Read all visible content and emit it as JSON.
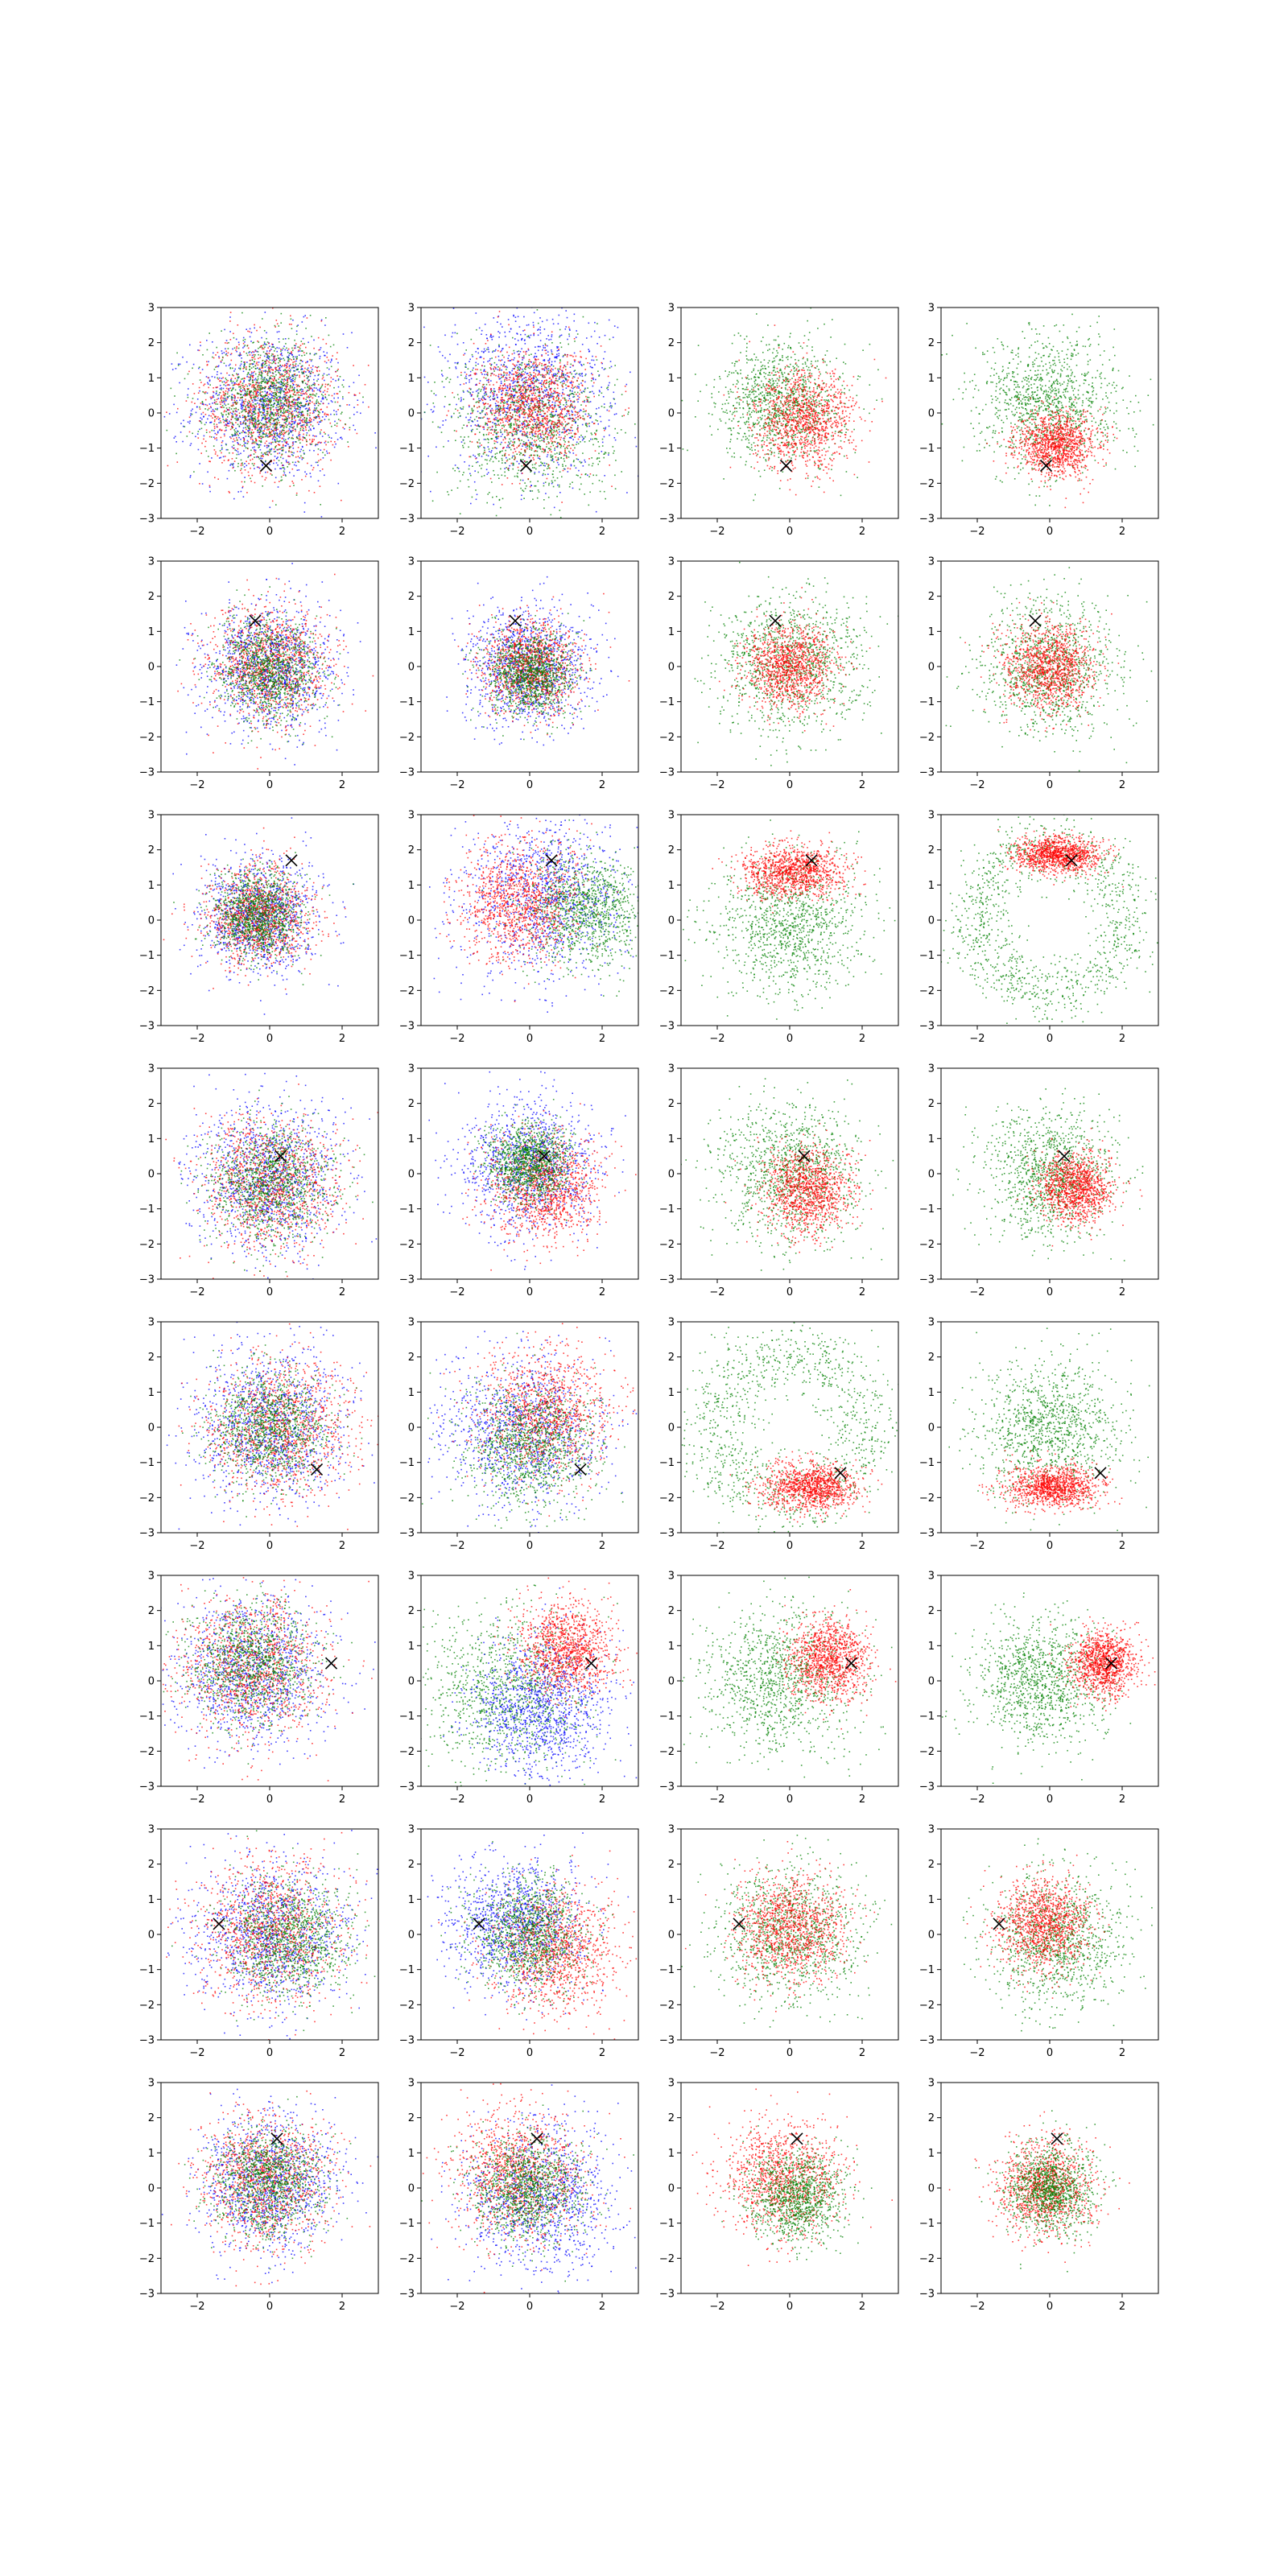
{
  "colors": {
    "red": "#ff0000",
    "green": "#008000",
    "blue": "#0000ff",
    "marker": "#000000",
    "frame": "#000000",
    "background": "#ffffff"
  },
  "chart_data": {
    "type": "scatter",
    "grid": false,
    "legend": "none",
    "rows": 8,
    "cols": 4,
    "xlim": [
      -3,
      3
    ],
    "ylim": [
      -3,
      3
    ],
    "x_ticks": [
      -2,
      0,
      2
    ],
    "y_ticks": [
      -3,
      -2,
      -1,
      0,
      1,
      2,
      3
    ],
    "x_tick_labels": [
      "−2",
      "0",
      "2"
    ],
    "y_tick_labels": [
      "−3",
      "−2",
      "−1",
      "0",
      "1",
      "2",
      "3"
    ],
    "marker_symbol": "x",
    "panels": [
      {
        "row": 0,
        "col": 0,
        "marker": [
          -0.1,
          -1.5
        ],
        "clouds": [
          {
            "color": "blue",
            "cx": 0,
            "cy": 0.2,
            "s": 1.05
          },
          {
            "color": "red",
            "cx": 0,
            "cy": 0.25,
            "s": 0.95
          },
          {
            "color": "green",
            "cx": 0,
            "cy": 0.3,
            "s": 0.85
          }
        ]
      },
      {
        "row": 0,
        "col": 1,
        "marker": [
          -0.1,
          -1.5
        ],
        "clouds": [
          {
            "color": "blue",
            "cx": 0,
            "cy": 0.6,
            "s": 1.15
          },
          {
            "color": "green",
            "cx": 0,
            "cy": -0.3,
            "s": 1.1
          },
          {
            "color": "red",
            "cx": 0.1,
            "cy": 0.2,
            "s": 0.8
          }
        ]
      },
      {
        "row": 0,
        "col": 2,
        "marker": [
          -0.1,
          -1.5
        ],
        "clouds": [
          {
            "color": "green",
            "cx": -0.2,
            "cy": 0.3,
            "s": 0.85
          },
          {
            "color": "red",
            "cx": 0.4,
            "cy": -0.2,
            "s": 0.7
          }
        ]
      },
      {
        "row": 0,
        "col": 3,
        "marker": [
          -0.1,
          -1.5
        ],
        "clouds": [
          {
            "color": "green",
            "cx": 0,
            "cy": 0.3,
            "s": 0.95
          },
          {
            "color": "red",
            "cx": 0.2,
            "cy": -0.9,
            "s": 0.55,
            "sy": 0.45
          }
        ]
      },
      {
        "row": 1,
        "col": 0,
        "marker": [
          -0.4,
          1.3
        ],
        "clouds": [
          {
            "color": "blue",
            "cx": 0,
            "cy": 0,
            "s": 0.9
          },
          {
            "color": "red",
            "cx": 0,
            "cy": 0,
            "s": 0.85
          },
          {
            "color": "green",
            "cx": 0,
            "cy": -0.1,
            "s": 0.7
          }
        ]
      },
      {
        "row": 1,
        "col": 1,
        "marker": [
          -0.4,
          1.3
        ],
        "clouds": [
          {
            "color": "blue",
            "cx": 0,
            "cy": 0,
            "s": 0.85
          },
          {
            "color": "red",
            "cx": 0,
            "cy": 0,
            "s": 0.65
          },
          {
            "color": "green",
            "cx": 0,
            "cy": -0.2,
            "s": 0.6
          }
        ]
      },
      {
        "row": 1,
        "col": 2,
        "marker": [
          -0.4,
          1.3
        ],
        "clouds": [
          {
            "color": "green",
            "cx": 0,
            "cy": 0,
            "s": 1.0
          },
          {
            "color": "red",
            "cx": 0,
            "cy": 0,
            "s": 0.6
          }
        ]
      },
      {
        "row": 1,
        "col": 3,
        "marker": [
          -0.4,
          1.3
        ],
        "clouds": [
          {
            "color": "green",
            "cx": 0,
            "cy": 0,
            "s": 0.95
          },
          {
            "color": "red",
            "cx": 0,
            "cy": 0,
            "s": 0.6
          }
        ]
      },
      {
        "row": 2,
        "col": 0,
        "marker": [
          0.6,
          1.7
        ],
        "clouds": [
          {
            "color": "blue",
            "cx": -0.3,
            "cy": 0.1,
            "s": 0.8
          },
          {
            "color": "red",
            "cx": -0.3,
            "cy": 0.1,
            "s": 0.7
          },
          {
            "color": "green",
            "cx": -0.3,
            "cy": 0.1,
            "s": 0.6
          }
        ]
      },
      {
        "row": 2,
        "col": 1,
        "marker": [
          0.6,
          1.7
        ],
        "clouds": [
          {
            "color": "blue",
            "cx": 0.4,
            "cy": 0.7,
            "s": 1.15
          },
          {
            "color": "green",
            "cx": 1.5,
            "cy": 0.3,
            "s": 0.8
          },
          {
            "color": "red",
            "cx": -0.3,
            "cy": 0.5,
            "s": 0.85
          }
        ]
      },
      {
        "row": 2,
        "col": 2,
        "marker": [
          0.6,
          1.7
        ],
        "clouds": [
          {
            "color": "green",
            "cx": 0,
            "cy": -0.1,
            "s": 1.0
          },
          {
            "color": "red",
            "cx": 0.1,
            "cy": 1.4,
            "s": 0.7,
            "sy": 0.35
          }
        ]
      },
      {
        "row": 2,
        "col": 3,
        "marker": [
          0.6,
          1.7
        ],
        "clouds": [
          {
            "color": "green",
            "ring": 2.1,
            "sr": 0.45
          },
          {
            "color": "red",
            "cx": 0.2,
            "cy": 1.85,
            "s": 0.6,
            "sy": 0.25
          }
        ]
      },
      {
        "row": 3,
        "col": 0,
        "marker": [
          0.3,
          0.5
        ],
        "clouds": [
          {
            "color": "blue",
            "cx": 0,
            "cy": -0.2,
            "s": 1.0
          },
          {
            "color": "red",
            "cx": 0,
            "cy": -0.3,
            "s": 0.95
          },
          {
            "color": "green",
            "cx": 0,
            "cy": -0.3,
            "s": 0.85
          }
        ]
      },
      {
        "row": 3,
        "col": 1,
        "marker": [
          0.4,
          0.5
        ],
        "clouds": [
          {
            "color": "blue",
            "cx": 0,
            "cy": 0.2,
            "s": 0.95
          },
          {
            "color": "red",
            "cx": 0.4,
            "cy": -0.4,
            "s": 0.75
          },
          {
            "color": "green",
            "cx": 0,
            "cy": 0.3,
            "s": 0.55
          }
        ]
      },
      {
        "row": 3,
        "col": 2,
        "marker": [
          0.4,
          0.5
        ],
        "clouds": [
          {
            "color": "green",
            "cx": 0,
            "cy": 0,
            "s": 1.0
          },
          {
            "color": "red",
            "cx": 0.5,
            "cy": -0.5,
            "s": 0.6
          }
        ]
      },
      {
        "row": 3,
        "col": 3,
        "marker": [
          0.4,
          0.5
        ],
        "clouds": [
          {
            "color": "green",
            "cx": 0,
            "cy": 0,
            "s": 0.9
          },
          {
            "color": "red",
            "cx": 0.7,
            "cy": -0.4,
            "s": 0.5
          }
        ]
      },
      {
        "row": 4,
        "col": 0,
        "marker": [
          1.3,
          -1.2
        ],
        "clouds": [
          {
            "color": "blue",
            "cx": 0,
            "cy": 0,
            "s": 1.05
          },
          {
            "color": "red",
            "cx": 0.3,
            "cy": 0,
            "s": 1.0
          },
          {
            "color": "green",
            "cx": 0,
            "cy": 0,
            "s": 0.8
          }
        ]
      },
      {
        "row": 4,
        "col": 1,
        "marker": [
          1.4,
          -1.2
        ],
        "clouds": [
          {
            "color": "blue",
            "cx": -0.2,
            "cy": -0.1,
            "s": 1.1
          },
          {
            "color": "red",
            "cx": 0.4,
            "cy": 0.4,
            "s": 0.9
          },
          {
            "color": "green",
            "cx": 0,
            "cy": -0.5,
            "s": 0.9
          }
        ]
      },
      {
        "row": 4,
        "col": 2,
        "marker": [
          1.4,
          -1.3
        ],
        "clouds": [
          {
            "color": "green",
            "ring": 2.1,
            "sr": 0.55
          },
          {
            "color": "red",
            "cx": 0.6,
            "cy": -1.7,
            "s": 0.65,
            "sy": 0.35
          }
        ]
      },
      {
        "row": 4,
        "col": 3,
        "marker": [
          1.4,
          -1.3
        ],
        "clouds": [
          {
            "color": "green",
            "cx": 0,
            "cy": 0,
            "s": 1.0
          },
          {
            "color": "red",
            "cx": 0.1,
            "cy": -1.7,
            "s": 0.65,
            "sy": 0.3
          }
        ]
      },
      {
        "row": 5,
        "col": 0,
        "marker": [
          1.7,
          0.5
        ],
        "clouds": [
          {
            "color": "blue",
            "cx": -0.5,
            "cy": 0.3,
            "s": 1.05
          },
          {
            "color": "red",
            "cx": -0.5,
            "cy": 0.4,
            "s": 1.0
          },
          {
            "color": "green",
            "cx": -0.5,
            "cy": 0.5,
            "s": 0.85
          }
        ]
      },
      {
        "row": 5,
        "col": 1,
        "marker": [
          1.7,
          0.5
        ],
        "clouds": [
          {
            "color": "green",
            "cx": -0.6,
            "cy": -0.3,
            "s": 1.1
          },
          {
            "color": "blue",
            "cx": 0.3,
            "cy": -0.8,
            "s": 0.95
          },
          {
            "color": "red",
            "cx": 1.0,
            "cy": 0.9,
            "s": 0.65
          }
        ]
      },
      {
        "row": 5,
        "col": 2,
        "marker": [
          1.7,
          0.5
        ],
        "clouds": [
          {
            "color": "green",
            "cx": -0.2,
            "cy": 0,
            "s": 1.05
          },
          {
            "color": "red",
            "cx": 1.1,
            "cy": 0.6,
            "s": 0.55
          }
        ]
      },
      {
        "row": 5,
        "col": 3,
        "marker": [
          1.7,
          0.5
        ],
        "clouds": [
          {
            "color": "green",
            "cx": -0.3,
            "cy": 0,
            "s": 0.9
          },
          {
            "color": "red",
            "cx": 1.5,
            "cy": 0.5,
            "s": 0.45
          }
        ]
      },
      {
        "row": 6,
        "col": 0,
        "marker": [
          -1.4,
          0.3
        ],
        "clouds": [
          {
            "color": "blue",
            "cx": 0,
            "cy": 0,
            "s": 1.05
          },
          {
            "color": "red",
            "cx": 0,
            "cy": 0.1,
            "s": 1.0
          },
          {
            "color": "green",
            "cx": 0.5,
            "cy": -0.1,
            "s": 0.85
          }
        ]
      },
      {
        "row": 6,
        "col": 1,
        "marker": [
          -1.4,
          0.3
        ],
        "clouds": [
          {
            "color": "blue",
            "cx": -0.4,
            "cy": 0.3,
            "s": 0.95
          },
          {
            "color": "red",
            "cx": 0.7,
            "cy": -0.4,
            "s": 0.85
          },
          {
            "color": "green",
            "cx": 0,
            "cy": 0,
            "s": 0.8
          }
        ]
      },
      {
        "row": 6,
        "col": 2,
        "marker": [
          -1.4,
          0.3
        ],
        "clouds": [
          {
            "color": "green",
            "cx": 0,
            "cy": 0,
            "s": 1.0
          },
          {
            "color": "red",
            "cx": 0,
            "cy": 0.2,
            "s": 0.75
          }
        ]
      },
      {
        "row": 6,
        "col": 3,
        "marker": [
          -1.4,
          0.3
        ],
        "clouds": [
          {
            "color": "green",
            "cx": 0.2,
            "cy": -0.2,
            "s": 0.95
          },
          {
            "color": "red",
            "cx": -0.2,
            "cy": 0.3,
            "s": 0.65
          }
        ]
      },
      {
        "row": 7,
        "col": 0,
        "marker": [
          0.2,
          1.4
        ],
        "clouds": [
          {
            "color": "blue",
            "cx": 0,
            "cy": 0.2,
            "s": 0.95
          },
          {
            "color": "red",
            "cx": -0.1,
            "cy": 0.2,
            "s": 0.9
          },
          {
            "color": "green",
            "cx": 0,
            "cy": 0.2,
            "s": 0.75
          }
        ]
      },
      {
        "row": 7,
        "col": 1,
        "marker": [
          0.2,
          1.4
        ],
        "clouds": [
          {
            "color": "blue",
            "cx": 0.3,
            "cy": -0.3,
            "s": 1.05
          },
          {
            "color": "red",
            "cx": -0.3,
            "cy": 0.4,
            "s": 0.9
          },
          {
            "color": "green",
            "cx": 0,
            "cy": 0,
            "s": 0.75
          }
        ]
      },
      {
        "row": 7,
        "col": 2,
        "marker": [
          0.2,
          1.4
        ],
        "clouds": [
          {
            "color": "red",
            "cx": -0.2,
            "cy": 0.3,
            "s": 0.8
          },
          {
            "color": "green",
            "cx": 0.2,
            "cy": -0.2,
            "s": 0.65
          }
        ]
      },
      {
        "row": 7,
        "col": 3,
        "marker": [
          0.2,
          1.4
        ],
        "clouds": [
          {
            "color": "red",
            "cx": -0.1,
            "cy": 0,
            "s": 0.65
          },
          {
            "color": "green",
            "cx": 0,
            "cy": 0,
            "s": 0.6
          }
        ]
      }
    ]
  }
}
